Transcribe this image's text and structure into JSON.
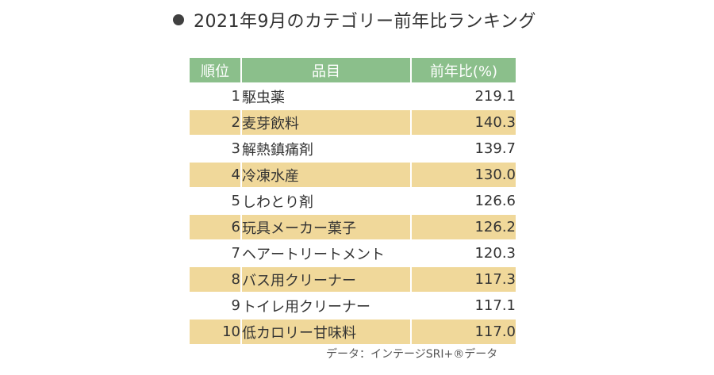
{
  "title": "2021年9月のカテゴリー前年比ランキング",
  "source": "データ：インテージSRI+®データ",
  "chart_data": {
    "type": "table",
    "title": "2021年9月のカテゴリー前年比ランキング",
    "columns": [
      "順位",
      "品目",
      "前年比(%)"
    ],
    "rows": [
      {
        "rank": "1",
        "item": "駆虫薬",
        "value": "219.1"
      },
      {
        "rank": "2",
        "item": "麦芽飲料",
        "value": "140.3"
      },
      {
        "rank": "3",
        "item": "解熱鎮痛剤",
        "value": "139.7"
      },
      {
        "rank": "4",
        "item": "冷凍水産",
        "value": "130.0"
      },
      {
        "rank": "5",
        "item": "しわとり剤",
        "value": "126.6"
      },
      {
        "rank": "6",
        "item": "玩具メーカー菓子",
        "value": "126.2"
      },
      {
        "rank": "7",
        "item": "ヘアートリートメント",
        "value": "120.3"
      },
      {
        "rank": "8",
        "item": "バス用クリーナー",
        "value": "117.3"
      },
      {
        "rank": "9",
        "item": "トイレ用クリーナー",
        "value": "117.1"
      },
      {
        "rank": "10",
        "item": "低カロリー甘味料",
        "value": "117.0"
      }
    ]
  }
}
